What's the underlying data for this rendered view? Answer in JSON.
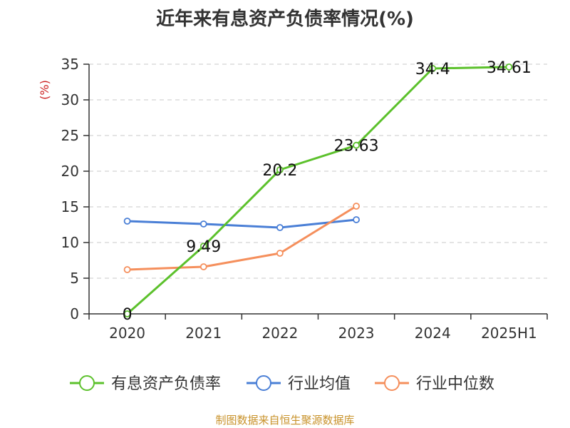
{
  "title": "近年来有息资产负债率情况(%)",
  "source": "制图数据来自恒生聚源数据库",
  "chart_data": {
    "type": "line",
    "categories": [
      "2020",
      "2021",
      "2022",
      "2023",
      "2024",
      "2025H1"
    ],
    "ylabel": "(%)",
    "ylim": [
      0,
      35
    ],
    "yticks": [
      0,
      5,
      10,
      15,
      20,
      25,
      30,
      35
    ],
    "grid": true,
    "legend_position": "bottom",
    "series": [
      {
        "name": "有息资产负债率",
        "color": "#5cc12c",
        "values": [
          0,
          9.49,
          20.2,
          23.63,
          34.4,
          34.61
        ],
        "labels": [
          "0",
          "9.49",
          "20.2",
          "23.63",
          "34.4",
          "34.61"
        ]
      },
      {
        "name": "行业均值",
        "color": "#4a7fd6",
        "values": [
          13.0,
          12.6,
          12.1,
          13.2,
          null,
          null
        ]
      },
      {
        "name": "行业中位数",
        "color": "#f58f5c",
        "values": [
          6.2,
          6.6,
          8.5,
          15.1,
          null,
          null
        ]
      }
    ]
  }
}
